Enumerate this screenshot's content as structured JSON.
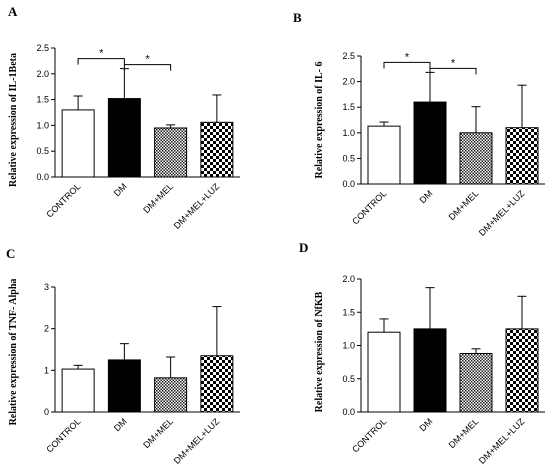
{
  "figure": {
    "background": "#ffffff",
    "bar_edge": "#000000"
  },
  "chart_data": [
    {
      "type": "bar",
      "panel": "A",
      "ylabel": "Relative expression of IL-1Beta",
      "categories": [
        "CONTROL",
        "DM",
        "DM+MEL",
        "DM+MEL+LUZ"
      ],
      "values": [
        1.3,
        1.52,
        0.95,
        1.06
      ],
      "errors": [
        0.27,
        0.58,
        0.06,
        0.53
      ],
      "ylim": [
        0,
        2.5
      ],
      "yticks": [
        "0.0",
        "0.5",
        "1.0",
        "1.5",
        "2.0",
        "2.5"
      ],
      "significance": [
        {
          "from": 0,
          "to": 1,
          "label": "*"
        },
        {
          "from": 1,
          "to": 2,
          "label": "*"
        }
      ]
    },
    {
      "type": "bar",
      "panel": "B",
      "ylabel": "Relative expression of IL- 6",
      "categories": [
        "CONTROL",
        "DM",
        "DM+MEL",
        "DM+MEL+LUZ"
      ],
      "values": [
        1.13,
        1.6,
        1.0,
        1.1
      ],
      "errors": [
        0.08,
        0.58,
        0.51,
        0.83
      ],
      "ylim": [
        0,
        2.5
      ],
      "yticks": [
        "0.0",
        "0.5",
        "1.0",
        "1.5",
        "2.0",
        "2.5"
      ],
      "significance": [
        {
          "from": 0,
          "to": 1,
          "label": "*"
        },
        {
          "from": 1,
          "to": 2,
          "label": "*"
        }
      ]
    },
    {
      "type": "bar",
      "panel": "C",
      "ylabel": "Relative expression of TNF- Alpha",
      "categories": [
        "CONTROL",
        "DM",
        "DM+MEL",
        "DM+MEL+LUZ"
      ],
      "values": [
        1.03,
        1.25,
        0.82,
        1.35
      ],
      "errors": [
        0.09,
        0.39,
        0.5,
        1.18
      ],
      "ylim": [
        0,
        3
      ],
      "yticks": [
        "0",
        "1",
        "2",
        "3"
      ],
      "significance": []
    },
    {
      "type": "bar",
      "panel": "D",
      "ylabel": "Relative expression of NfKB",
      "categories": [
        "CONTROL",
        "DM",
        "DM+MEL",
        "DM+MEL+LUZ"
      ],
      "values": [
        1.2,
        1.25,
        0.88,
        1.25
      ],
      "errors": [
        0.2,
        0.62,
        0.07,
        0.49
      ],
      "ylim": [
        0,
        2.0
      ],
      "yticks": [
        "0.0",
        "0.5",
        "1.0",
        "1.5",
        "2.0"
      ],
      "significance": []
    }
  ]
}
